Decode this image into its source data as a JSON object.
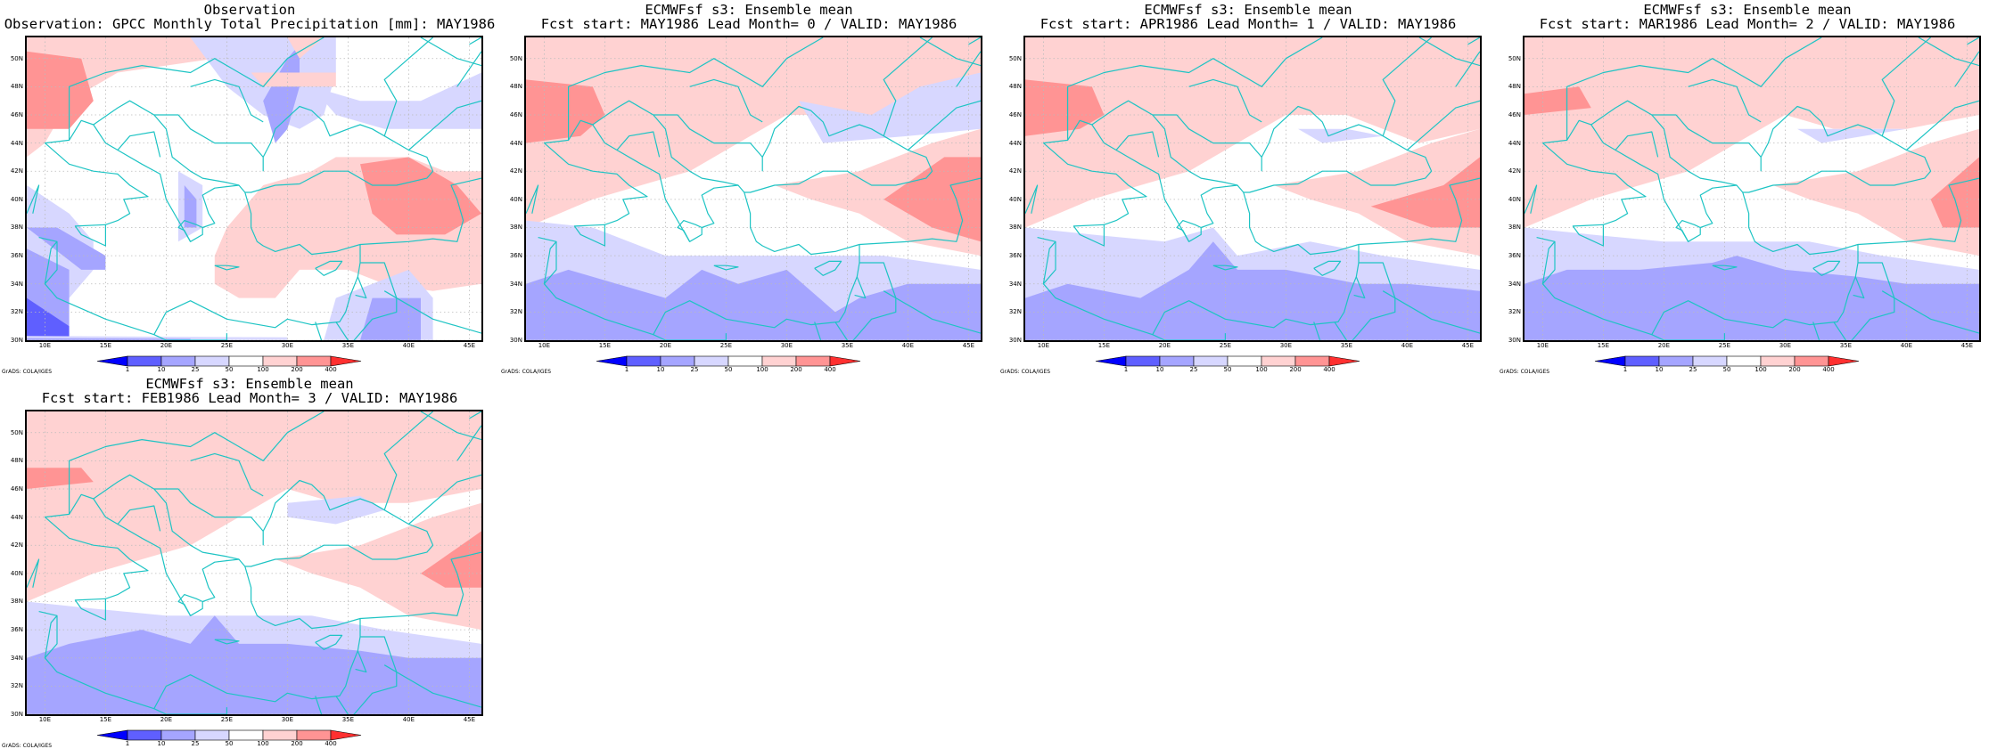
{
  "colors": {
    "c_lt1": "#0000ff",
    "c_1_10": "#5f5fff",
    "c_10_25": "#a5a5ff",
    "c_25_50": "#d7d7ff",
    "c_50_100": "#ffffff",
    "c_100_200": "#ffd2d2",
    "c_200_400": "#ff9494",
    "c_gt400": "#ff3030",
    "coast": "#1ec4c4",
    "grid": "#bbbbbb"
  },
  "colorbar_labels": [
    "1",
    "10",
    "25",
    "50",
    "100",
    "200",
    "400"
  ],
  "lat_labels": [
    "50N",
    "48N",
    "46N",
    "44N",
    "42N",
    "40N",
    "38N",
    "36N",
    "34N",
    "32N",
    "30N"
  ],
  "lon_labels": [
    "10E",
    "15E",
    "20E",
    "25E",
    "30E",
    "35E",
    "40E",
    "45E"
  ],
  "grads_credit": "GrADS: COLA/IGES",
  "panels": [
    {
      "title1": "Observation",
      "title2": "Observation: GPCC Monthly Total Precipitation [mm]: MAY1986",
      "variant": "obs"
    },
    {
      "title1": "ECMWFsf s3: Ensemble mean",
      "title2": "Fcst start: MAY1986  Lead Month= 0 / VALID: MAY1986",
      "variant": "f0"
    },
    {
      "title1": "ECMWFsf s3: Ensemble mean",
      "title2": "Fcst start: APR1986  Lead Month= 1 / VALID: MAY1986",
      "variant": "f1"
    },
    {
      "title1": "ECMWFsf s3: Ensemble mean",
      "title2": "Fcst start: MAR1986  Lead Month= 2 / VALID: MAY1986",
      "variant": "f2"
    },
    {
      "title1": "ECMWFsf s3: Ensemble mean",
      "title2": "Fcst start: FEB1986  Lead Month= 3 / VALID: MAY1986",
      "variant": "f3"
    }
  ]
}
